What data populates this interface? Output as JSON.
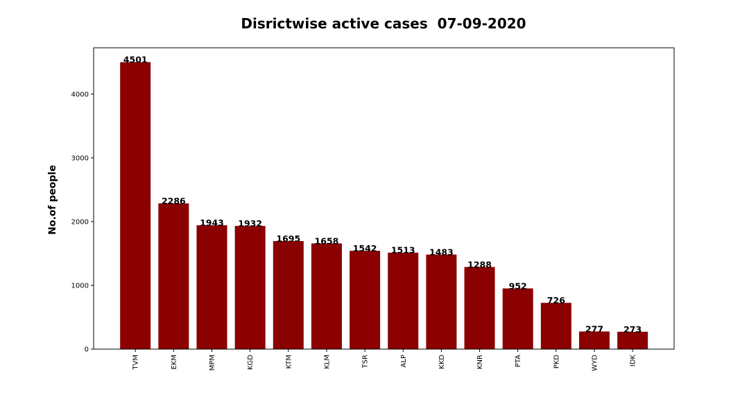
{
  "chart_data": {
    "type": "bar",
    "title": "Disrictwise active cases  07-09-2020",
    "xlabel": "",
    "ylabel": "No.of people",
    "categories": [
      "TVM",
      "EKM",
      "MPM",
      "KGD",
      "KTM",
      "KLM",
      "TSR",
      "ALP",
      "KKD",
      "KNR",
      "PTA",
      "PKD",
      "WYD",
      "IDK"
    ],
    "values": [
      4501,
      2286,
      1943,
      1932,
      1695,
      1658,
      1542,
      1513,
      1483,
      1288,
      952,
      726,
      277,
      273
    ],
    "value_labels": [
      "4501",
      "2286",
      "1943",
      "1932",
      "1695",
      "1658",
      "1542",
      "1513",
      "1483",
      "1288",
      "952",
      "726",
      "277",
      "273"
    ],
    "ylim": [
      0,
      4726
    ],
    "yticks": [
      0,
      1000,
      2000,
      3000,
      4000
    ],
    "ytick_labels": [
      "0",
      "1000",
      "2000",
      "3000",
      "4000"
    ],
    "bar_color": "#8b0000",
    "grid": false,
    "legend": "none"
  }
}
